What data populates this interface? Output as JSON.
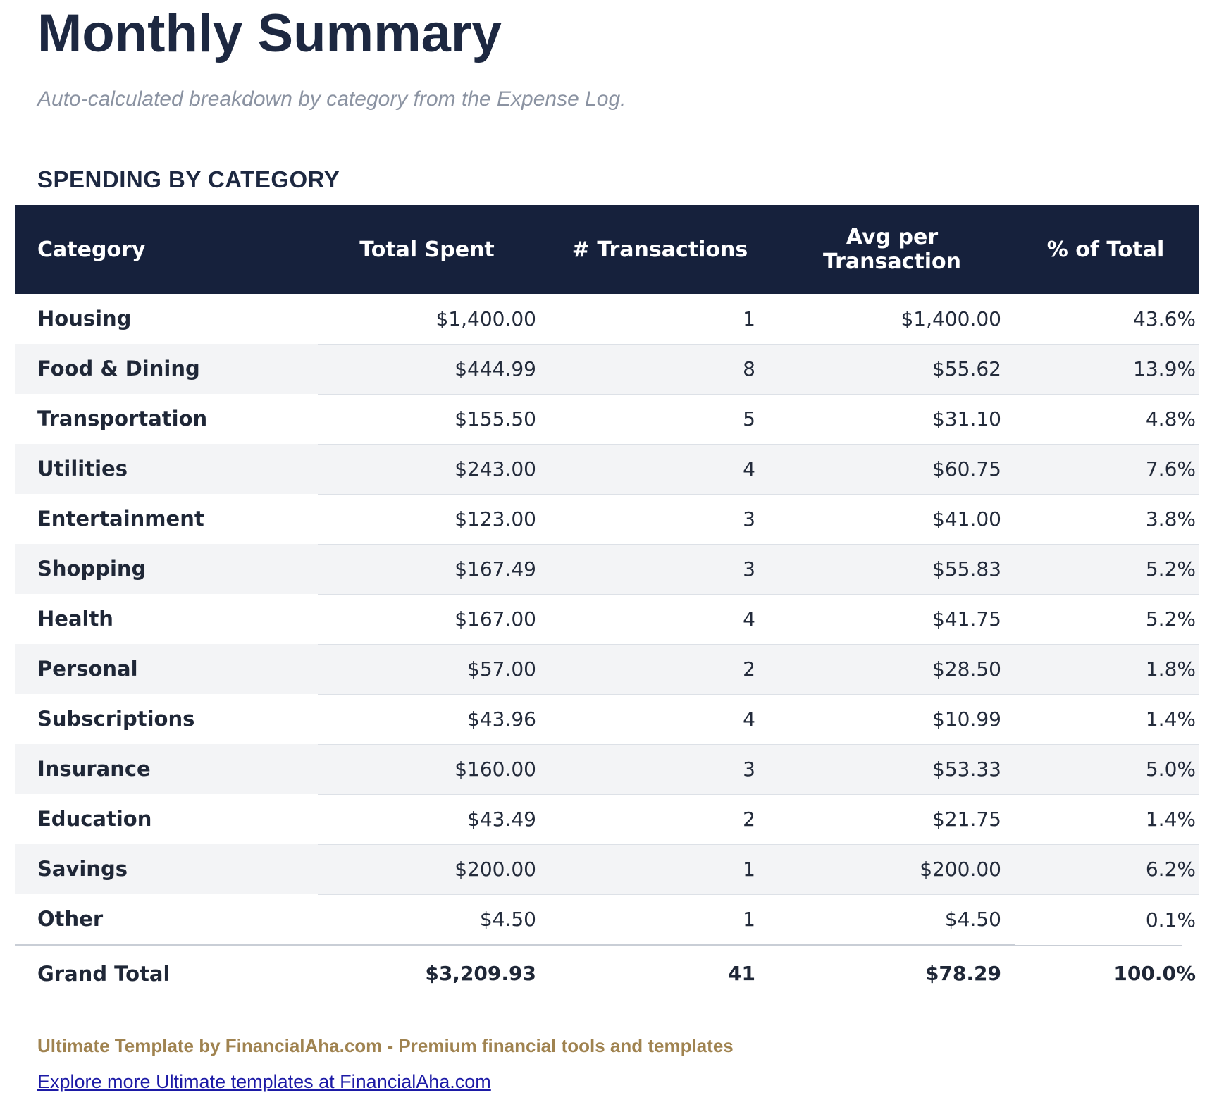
{
  "page": {
    "title": "Monthly Summary",
    "subtitle": "Auto-calculated breakdown by category from the Expense Log."
  },
  "section": {
    "heading": "SPENDING BY CATEGORY"
  },
  "table": {
    "columns": [
      "Category",
      "Total Spent",
      "# Transactions",
      "Avg per Transaction",
      "% of Total"
    ],
    "rows": [
      {
        "category": "Housing",
        "total": "$1,400.00",
        "transactions": "1",
        "avg": "$1,400.00",
        "pct": "43.6%"
      },
      {
        "category": "Food & Dining",
        "total": "$444.99",
        "transactions": "8",
        "avg": "$55.62",
        "pct": "13.9%"
      },
      {
        "category": "Transportation",
        "total": "$155.50",
        "transactions": "5",
        "avg": "$31.10",
        "pct": "4.8%"
      },
      {
        "category": "Utilities",
        "total": "$243.00",
        "transactions": "4",
        "avg": "$60.75",
        "pct": "7.6%"
      },
      {
        "category": "Entertainment",
        "total": "$123.00",
        "transactions": "3",
        "avg": "$41.00",
        "pct": "3.8%"
      },
      {
        "category": "Shopping",
        "total": "$167.49",
        "transactions": "3",
        "avg": "$55.83",
        "pct": "5.2%"
      },
      {
        "category": "Health",
        "total": "$167.00",
        "transactions": "4",
        "avg": "$41.75",
        "pct": "5.2%"
      },
      {
        "category": "Personal",
        "total": "$57.00",
        "transactions": "2",
        "avg": "$28.50",
        "pct": "1.8%"
      },
      {
        "category": "Subscriptions",
        "total": "$43.96",
        "transactions": "4",
        "avg": "$10.99",
        "pct": "1.4%"
      },
      {
        "category": "Insurance",
        "total": "$160.00",
        "transactions": "3",
        "avg": "$53.33",
        "pct": "5.0%"
      },
      {
        "category": "Education",
        "total": "$43.49",
        "transactions": "2",
        "avg": "$21.75",
        "pct": "1.4%"
      },
      {
        "category": "Savings",
        "total": "$200.00",
        "transactions": "1",
        "avg": "$200.00",
        "pct": "6.2%"
      },
      {
        "category": "Other",
        "total": "$4.50",
        "transactions": "1",
        "avg": "$4.50",
        "pct": "0.1%"
      }
    ],
    "grand_total": {
      "category": "Grand Total",
      "total": "$3,209.93",
      "transactions": "41",
      "avg": "$78.29",
      "pct": "100.0%"
    }
  },
  "footer": {
    "branding": "Ultimate Template by FinancialAha.com - Premium financial tools and templates",
    "link_text": "Explore more Ultimate templates at FinancialAha.com"
  },
  "colors": {
    "header_bg": "#16213c",
    "header_text": "#ffffff",
    "stripe": "#f3f4f6",
    "row_border": "#dde1e7",
    "total_border": "#c9ced6",
    "title": "#1d2841",
    "subtitle": "#8b93a2",
    "body_text": "#232b3b",
    "cat_text": "#1f2737",
    "brand_gold": "#a08350",
    "link_blue": "#1c1aa6"
  }
}
